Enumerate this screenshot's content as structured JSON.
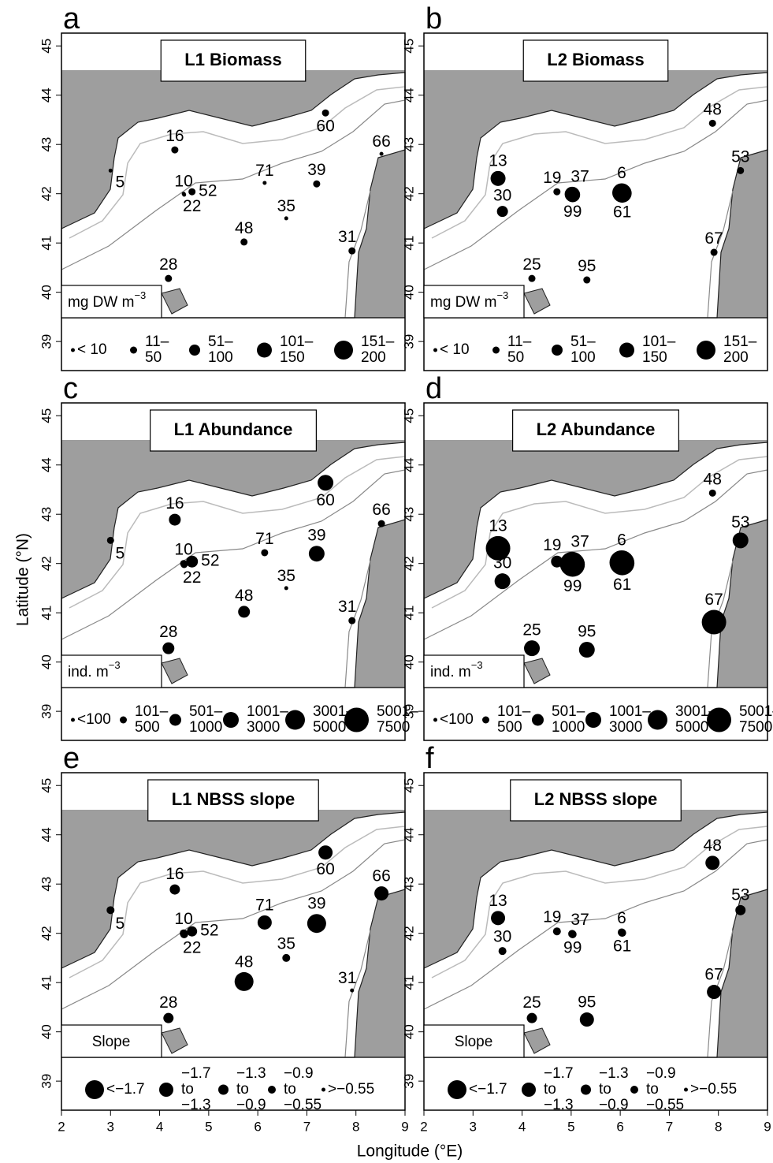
{
  "xlabel": "Longitude (°E)",
  "ylabel": "Latitude (°N)",
  "chart_data": [
    {
      "panel": "a",
      "type": "scatter",
      "title": "L1 Biomass",
      "unit": "mg DW m",
      "unit_sup": "−3",
      "color": "#000000",
      "xlim": [
        2,
        9
      ],
      "ylim": [
        38.41,
        45.26
      ],
      "yticks": [
        39,
        40,
        41,
        42,
        43,
        44,
        45
      ],
      "series": [
        {
          "name": "< 10",
          "x": [
            3.0,
            4.49,
            4.5,
            6.14,
            6.58,
            8.52
          ],
          "y": [
            42.47,
            42.0,
            41.98,
            42.22,
            41.5,
            42.81
          ],
          "labels": [
            "5",
            "10",
            "22",
            "71",
            "35",
            "66"
          ]
        },
        {
          "name": "11–\n50",
          "x": [
            4.31,
            4.66,
            7.2,
            5.72,
            7.92,
            4.18,
            7.38
          ],
          "y": [
            42.89,
            42.04,
            42.2,
            41.02,
            40.84,
            40.28,
            43.64
          ],
          "labels": [
            "16",
            "52",
            "39",
            "48",
            "31",
            "28",
            "60"
          ]
        },
        {
          "name": "51–\n100",
          "x": [],
          "y": [],
          "labels": []
        },
        {
          "name": "101–\n150",
          "x": [],
          "y": [],
          "labels": []
        },
        {
          "name": "151–\n200",
          "x": [],
          "y": [],
          "labels": []
        }
      ]
    },
    {
      "panel": "b",
      "type": "scatter",
      "title": "L2 Biomass",
      "unit": "mg DW m",
      "unit_sup": "−3",
      "color": "#000000",
      "xlim": [
        2,
        9
      ],
      "ylim": [
        38.41,
        45.26
      ],
      "yticks": [
        39,
        40,
        41,
        42,
        43,
        44,
        45
      ],
      "series": [
        {
          "name": "< 10",
          "x": [],
          "y": [],
          "labels": []
        },
        {
          "name": "11–\n50",
          "x": [
            7.88,
            8.45,
            4.71,
            7.91,
            4.2,
            5.32
          ],
          "y": [
            43.43,
            42.47,
            42.04,
            40.81,
            40.28,
            40.25
          ],
          "labels": [
            "48",
            "53",
            "19",
            "67",
            "25",
            "95"
          ]
        },
        {
          "name": "51–\n100",
          "x": [
            3.6
          ],
          "y": [
            41.64
          ],
          "labels": [
            "30"
          ]
        },
        {
          "name": "101–\n150",
          "x": [
            3.51,
            5.02,
            5.03
          ],
          "y": [
            42.31,
            41.99,
            41.98
          ],
          "labels": [
            "13",
            "37",
            "99"
          ]
        },
        {
          "name": "151–\n200",
          "x": [
            6.03,
            6.04
          ],
          "y": [
            42.02,
            42.01
          ],
          "labels": [
            "6",
            "61"
          ]
        }
      ]
    },
    {
      "panel": "c",
      "type": "scatter",
      "title": "L1 Abundance",
      "unit": "ind. m",
      "unit_sup": "−3",
      "color": "#000000",
      "xlim": [
        2,
        9
      ],
      "ylim": [
        38.41,
        45.26
      ],
      "yticks": [
        39,
        40,
        41,
        42,
        43,
        44,
        45
      ],
      "series": [
        {
          "name": "<100",
          "x": [
            6.58
          ],
          "y": [
            41.5
          ],
          "labels": [
            "35"
          ]
        },
        {
          "name": "101–\n500",
          "x": [
            3.0,
            4.49,
            4.5,
            6.14,
            7.92,
            8.52
          ],
          "y": [
            42.47,
            42.0,
            41.98,
            42.22,
            40.84,
            42.81
          ],
          "labels": [
            "5",
            "10",
            "22",
            "71",
            "31",
            "66"
          ]
        },
        {
          "name": "501–\n1000",
          "x": [
            4.31,
            4.66,
            5.72,
            4.18
          ],
          "y": [
            42.89,
            42.04,
            41.02,
            40.28
          ],
          "labels": [
            "16",
            "52",
            "48",
            "28"
          ]
        },
        {
          "name": "1001–\n3000",
          "x": [
            7.2,
            7.38
          ],
          "y": [
            42.2,
            43.64
          ],
          "labels": [
            "39",
            "60"
          ]
        },
        {
          "name": "3001–\n5000",
          "x": [],
          "y": [],
          "labels": []
        },
        {
          "name": "5001–\n7500",
          "x": [],
          "y": [],
          "labels": []
        }
      ]
    },
    {
      "panel": "d",
      "type": "scatter",
      "title": "L2 Abundance",
      "unit": "ind. m",
      "unit_sup": "−3",
      "color": "#000000",
      "xlim": [
        2,
        9
      ],
      "ylim": [
        38.41,
        45.26
      ],
      "yticks": [
        39,
        40,
        41,
        42,
        43,
        44,
        45
      ],
      "series": [
        {
          "name": "<100",
          "x": [],
          "y": [],
          "labels": []
        },
        {
          "name": "101–\n500",
          "x": [
            7.88
          ],
          "y": [
            43.43
          ],
          "labels": [
            "48"
          ]
        },
        {
          "name": "501–\n1000",
          "x": [
            4.71
          ],
          "y": [
            42.04
          ],
          "labels": [
            "19"
          ]
        },
        {
          "name": "1001–\n3000",
          "x": [
            8.45,
            3.6,
            4.2,
            5.32
          ],
          "y": [
            42.47,
            41.64,
            40.28,
            40.25
          ],
          "labels": [
            "53",
            "30",
            "25",
            "95"
          ]
        },
        {
          "name": "3001–\n5000",
          "x": [],
          "y": [],
          "labels": []
        },
        {
          "name": "5001–\n7500",
          "x": [
            3.51,
            5.02,
            5.03,
            6.03,
            6.04,
            7.91
          ],
          "y": [
            42.31,
            41.99,
            41.98,
            42.02,
            42.01,
            40.81
          ],
          "labels": [
            "13",
            "37",
            "99",
            "6",
            "61",
            "67"
          ]
        }
      ]
    },
    {
      "panel": "e",
      "type": "scatter",
      "title": "L1 NBSS slope",
      "unit": "Slope",
      "color": "#000000",
      "xlim": [
        2,
        9
      ],
      "ylim": [
        38.41,
        45.26
      ],
      "xticks": [
        2,
        3,
        4,
        5,
        6,
        7,
        8,
        9
      ],
      "yticks": [
        39,
        40,
        41,
        42,
        43,
        44,
        45
      ],
      "series": [
        {
          "name": "<−1.7",
          "x": [
            7.2,
            5.72
          ],
          "y": [
            42.2,
            41.02
          ],
          "labels": [
            "39",
            "48"
          ]
        },
        {
          "name": "−1.7\nto\n−1.3",
          "x": [
            7.38,
            8.52,
            6.14
          ],
          "y": [
            43.64,
            42.81,
            42.22
          ],
          "labels": [
            "60",
            "66",
            "71"
          ]
        },
        {
          "name": "−1.3\nto\n−0.9",
          "x": [
            4.31,
            4.66,
            4.18
          ],
          "y": [
            42.89,
            42.04,
            40.28
          ],
          "labels": [
            "16",
            "52",
            "28"
          ]
        },
        {
          "name": "−0.9\nto\n−0.55",
          "x": [
            3.0,
            6.58,
            4.49,
            4.5
          ],
          "y": [
            42.47,
            41.5,
            42.0,
            41.98
          ],
          "labels": [
            "5",
            "35",
            "10",
            "22"
          ]
        },
        {
          "name": ">−0.55",
          "x": [
            7.92
          ],
          "y": [
            40.84
          ],
          "labels": [
            "31"
          ]
        }
      ]
    },
    {
      "panel": "f",
      "type": "scatter",
      "title": "L2 NBSS slope",
      "unit": "Slope",
      "color": "#000000",
      "xlim": [
        2,
        9
      ],
      "ylim": [
        38.41,
        45.26
      ],
      "xticks": [
        2,
        3,
        4,
        5,
        6,
        7,
        8,
        9
      ],
      "yticks": [
        39,
        40,
        41,
        42,
        43,
        44,
        45
      ],
      "series": [
        {
          "name": "<−1.7",
          "x": [],
          "y": [],
          "labels": []
        },
        {
          "name": "−1.7\nto\n−1.3",
          "x": [
            7.88,
            3.51,
            7.91,
            5.32
          ],
          "y": [
            43.43,
            42.31,
            40.81,
            40.25
          ],
          "labels": [
            "48",
            "13",
            "67",
            "95"
          ]
        },
        {
          "name": "−1.3\nto\n−0.9",
          "x": [
            8.45,
            4.2
          ],
          "y": [
            42.47,
            40.28
          ],
          "labels": [
            "53",
            "25"
          ]
        },
        {
          "name": "−0.9\nto\n−0.55",
          "x": [
            4.71,
            5.02,
            5.03,
            6.03,
            6.04,
            3.6
          ],
          "y": [
            42.04,
            41.99,
            41.98,
            42.02,
            42.01,
            41.64
          ],
          "labels": [
            "19",
            "37",
            "99",
            "6",
            "61",
            "30"
          ]
        },
        {
          "name": ">−0.55",
          "x": [],
          "y": [],
          "labels": []
        }
      ]
    }
  ]
}
